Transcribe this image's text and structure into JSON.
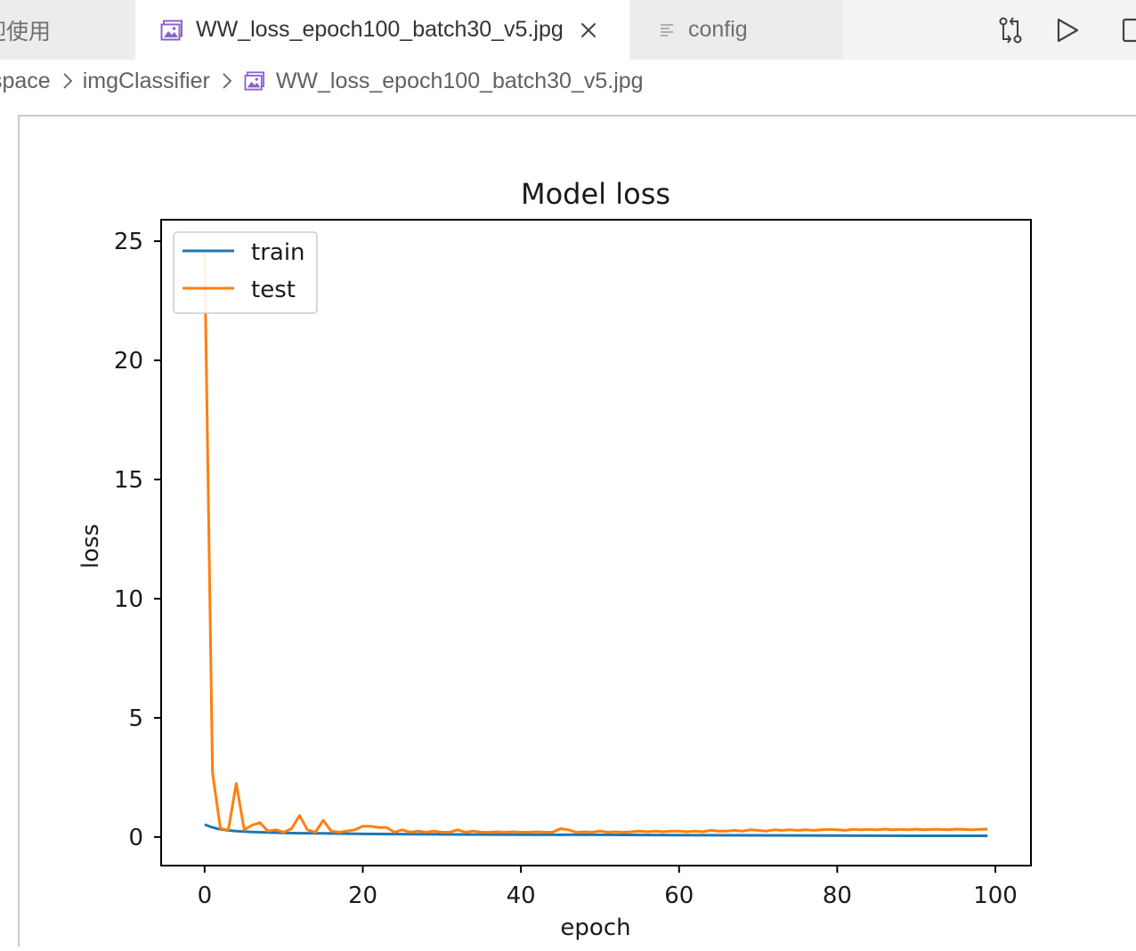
{
  "tabs": {
    "welcome": {
      "label": "迎使用"
    },
    "active": {
      "label": "WW_loss_epoch100_batch30_v5.jpg",
      "icon": "image-icon"
    },
    "config": {
      "label": "config",
      "icon": "lines-icon"
    }
  },
  "toolbar": {
    "actions": [
      "compare-changes-icon",
      "run-icon",
      "split-editor-icon"
    ]
  },
  "breadcrumb": {
    "items": [
      "space",
      "imgClassifier",
      "WW_loss_epoch100_batch30_v5.jpg"
    ]
  },
  "colors": {
    "train": "#1f77b4",
    "test": "#ff7f0e",
    "accent_icon": "#8a63c8"
  },
  "chart_data": {
    "type": "line",
    "title": "Model loss",
    "xlabel": "epoch",
    "ylabel": "loss",
    "xlim": [
      -5.5,
      104.5
    ],
    "ylim": [
      -1.2,
      25.9
    ],
    "xticks": [
      "0",
      "20",
      "40",
      "60",
      "80",
      "100"
    ],
    "yticks": [
      "0",
      "5",
      "10",
      "15",
      "20",
      "25"
    ],
    "legend_location": "upper left",
    "legend": [
      "train",
      "test"
    ],
    "grid": false,
    "series": [
      {
        "name": "train",
        "color": "#1f77b4",
        "x": [
          0,
          1,
          2,
          3,
          4,
          5,
          6,
          8,
          10,
          12,
          15,
          20,
          30,
          40,
          50,
          60,
          70,
          80,
          90,
          99
        ],
        "y": [
          0.52,
          0.4,
          0.32,
          0.28,
          0.25,
          0.23,
          0.21,
          0.19,
          0.17,
          0.16,
          0.15,
          0.13,
          0.11,
          0.1,
          0.09,
          0.08,
          0.07,
          0.06,
          0.05,
          0.05
        ]
      },
      {
        "name": "test",
        "color": "#ff7f0e",
        "x": [
          0,
          1,
          2,
          3,
          4,
          5,
          6,
          7,
          8,
          9,
          10,
          11,
          12,
          13,
          14,
          15,
          16,
          17,
          18,
          19,
          20,
          21,
          22,
          23,
          24,
          25,
          26,
          27,
          28,
          29,
          30,
          31,
          32,
          33,
          34,
          35,
          36,
          37,
          38,
          39,
          40,
          41,
          42,
          43,
          44,
          45,
          46,
          47,
          48,
          49,
          50,
          51,
          52,
          53,
          54,
          55,
          56,
          57,
          58,
          59,
          60,
          61,
          62,
          63,
          64,
          65,
          66,
          67,
          68,
          69,
          70,
          71,
          72,
          73,
          74,
          75,
          76,
          77,
          78,
          79,
          80,
          81,
          82,
          83,
          84,
          85,
          86,
          87,
          88,
          89,
          90,
          91,
          92,
          93,
          94,
          95,
          96,
          97,
          98,
          99
        ],
        "y": [
          24.6,
          2.7,
          0.35,
          0.3,
          2.25,
          0.3,
          0.5,
          0.6,
          0.25,
          0.3,
          0.2,
          0.35,
          0.9,
          0.3,
          0.2,
          0.7,
          0.25,
          0.2,
          0.25,
          0.3,
          0.45,
          0.45,
          0.4,
          0.4,
          0.2,
          0.3,
          0.2,
          0.25,
          0.2,
          0.25,
          0.2,
          0.2,
          0.3,
          0.2,
          0.25,
          0.2,
          0.2,
          0.22,
          0.2,
          0.22,
          0.2,
          0.2,
          0.22,
          0.2,
          0.2,
          0.35,
          0.3,
          0.2,
          0.22,
          0.2,
          0.25,
          0.2,
          0.22,
          0.2,
          0.22,
          0.25,
          0.22,
          0.25,
          0.22,
          0.25,
          0.25,
          0.22,
          0.25,
          0.22,
          0.28,
          0.25,
          0.25,
          0.28,
          0.25,
          0.3,
          0.28,
          0.25,
          0.3,
          0.28,
          0.3,
          0.28,
          0.3,
          0.28,
          0.3,
          0.32,
          0.3,
          0.28,
          0.32,
          0.3,
          0.32,
          0.3,
          0.33,
          0.3,
          0.32,
          0.3,
          0.33,
          0.3,
          0.32,
          0.32,
          0.3,
          0.33,
          0.32,
          0.3,
          0.32,
          0.33
        ]
      }
    ]
  }
}
